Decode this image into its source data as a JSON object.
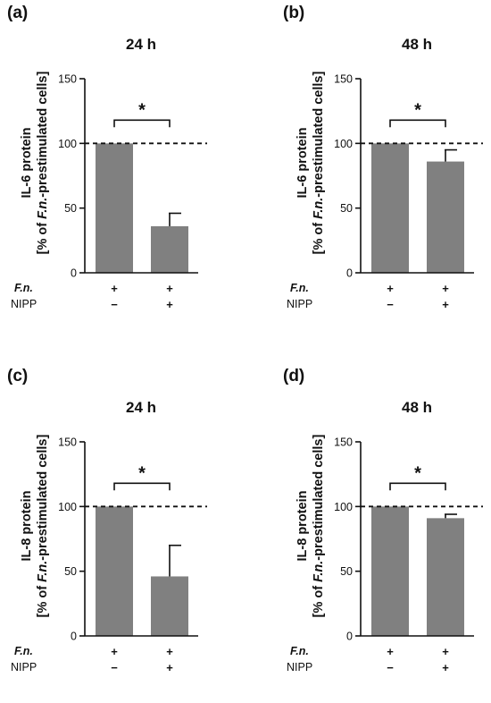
{
  "panels": [
    {
      "label": "(a)",
      "title": "24 h",
      "ylabel_line1": "IL-6 protein",
      "ylabel_pre": "[% of ",
      "ylabel_em": "F.n.",
      "ylabel_post": "-prestimulated cells]"
    },
    {
      "label": "(b)",
      "title": "48 h",
      "ylabel_line1": "IL-6 protein",
      "ylabel_pre": "[% of ",
      "ylabel_em": "F.n.",
      "ylabel_post": "-prestimulated cells]"
    },
    {
      "label": "(c)",
      "title": "24 h",
      "ylabel_line1": "IL-8 protein",
      "ylabel_pre": "[% of ",
      "ylabel_em": "F.n.",
      "ylabel_post": "-prestimulated cells]"
    },
    {
      "label": "(d)",
      "title": "48 h",
      "ylabel_line1": "IL-8 protein",
      "ylabel_pre": "[% of ",
      "ylabel_em": "F.n.",
      "ylabel_post": "-prestimulated cells]"
    }
  ],
  "conditions": {
    "row1_label": "F.n.",
    "row2_label": "NIPP",
    "bar1": {
      "row1": "+",
      "row2": "−"
    },
    "bar2": {
      "row1": "+",
      "row2": "+"
    }
  },
  "chart_data": [
    {
      "type": "bar",
      "title": "24 h",
      "ylabel": "IL-6 protein [% of F.n.-prestimulated cells]",
      "ylim": [
        0,
        150
      ],
      "yticks": [
        0,
        50,
        100,
        150
      ],
      "values": [
        100,
        36
      ],
      "errors": [
        0,
        10
      ],
      "reference_line": 100,
      "significance": "*",
      "bar_color": "#808080"
    },
    {
      "type": "bar",
      "title": "48 h",
      "ylabel": "IL-6 protein [% of F.n.-prestimulated cells]",
      "ylim": [
        0,
        150
      ],
      "yticks": [
        0,
        50,
        100,
        150
      ],
      "values": [
        100,
        86
      ],
      "errors": [
        0,
        9
      ],
      "reference_line": 100,
      "significance": "*",
      "bar_color": "#808080"
    },
    {
      "type": "bar",
      "title": "24 h",
      "ylabel": "IL-8 protein [% of F.n.-prestimulated cells]",
      "ylim": [
        0,
        150
      ],
      "yticks": [
        0,
        50,
        100,
        150
      ],
      "values": [
        100,
        46
      ],
      "errors": [
        0,
        24
      ],
      "reference_line": 100,
      "significance": "*",
      "bar_color": "#808080"
    },
    {
      "type": "bar",
      "title": "48 h",
      "ylabel": "IL-8 protein [% of F.n.-prestimulated cells]",
      "ylim": [
        0,
        150
      ],
      "yticks": [
        0,
        50,
        100,
        150
      ],
      "values": [
        100,
        91
      ],
      "errors": [
        0,
        3
      ],
      "reference_line": 100,
      "significance": "*",
      "bar_color": "#808080"
    }
  ]
}
